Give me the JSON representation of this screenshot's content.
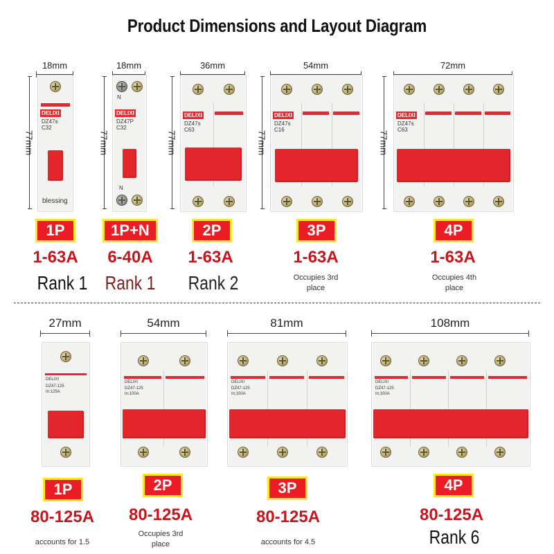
{
  "title": "Product Dimensions and Layout Diagram",
  "colors": {
    "badge_fill": "#ec1c24",
    "badge_border": "#fbe91e",
    "amp_text": "#c8141b",
    "handle_red": "#e3262c",
    "rank_dark": "#222222",
    "rank_maroon": "#7a1f1f"
  },
  "brand": "DELIXI",
  "top_row": {
    "widths": [
      "18mm",
      "18mm",
      "36mm",
      "54mm",
      "72mm"
    ],
    "height": "77mm",
    "items": [
      {
        "pole": "1P",
        "amps": "1-63A",
        "rank": "Rank 1",
        "note": "",
        "label_on_device": "blessing",
        "model": "DZ47s",
        "rating": "C32"
      },
      {
        "pole": "1P+N",
        "amps": "6-40A",
        "rank": "Rank 1",
        "note": "",
        "model": "DZ47P",
        "rating": "C32",
        "n_mark": "N"
      },
      {
        "pole": "2P",
        "amps": "1-63A",
        "rank": "Rank 2",
        "note": "",
        "model": "DZ47s",
        "rating": "C63"
      },
      {
        "pole": "3P",
        "amps": "1-63A",
        "rank": "",
        "note": "Occupies 3rd place",
        "model": "DZ47s",
        "rating": "C16"
      },
      {
        "pole": "4P",
        "amps": "1-63A",
        "rank": "",
        "note": "Occupies 4th place",
        "model": "DZ47s",
        "rating": "C63"
      }
    ]
  },
  "bottom_row": {
    "widths": [
      "27mm",
      "54mm",
      "81mm",
      "108mm"
    ],
    "items": [
      {
        "pole": "1P",
        "amps": "80-125A",
        "rank": "",
        "note": "accounts for 1.5",
        "model": "DZ47-125",
        "rating": "In:125A"
      },
      {
        "pole": "2P",
        "amps": "80-125A",
        "rank": "",
        "note": "Occupies 3rd place",
        "model": "DZ47-125",
        "rating": "In:100A"
      },
      {
        "pole": "3P",
        "amps": "80-125A",
        "rank": "",
        "note": "accounts for 4.5",
        "model": "DZ47-125",
        "rating": "In:100A"
      },
      {
        "pole": "4P",
        "amps": "80-125A",
        "rank": "Rank 6",
        "note": "",
        "model": "DZ47-125",
        "rating": "In:100A"
      }
    ]
  },
  "icons": [
    "screw-terminal-icon",
    "ccc-cert-icon"
  ]
}
